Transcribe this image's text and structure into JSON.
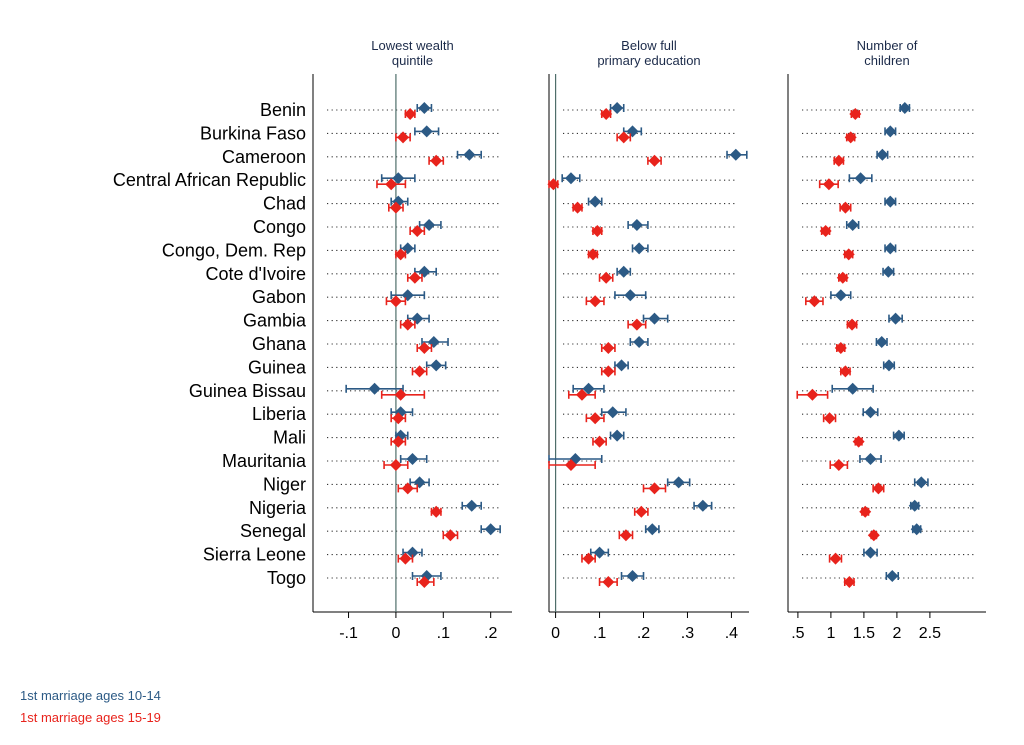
{
  "chart_data": {
    "type": "scatter",
    "countries": [
      "Benin",
      "Burkina Faso",
      "Cameroon",
      "Central African Republic",
      "Chad",
      "Congo",
      "Congo, Dem. Rep",
      "Cote d'Ivoire",
      "Gabon",
      "Gambia",
      "Ghana",
      "Guinea",
      "Guinea Bissau",
      "Liberia",
      "Mali",
      "Mauritania",
      "Niger",
      "Nigeria",
      "Senegal",
      "Sierra Leone",
      "Togo"
    ],
    "panels": [
      {
        "title_lines": [
          "Lowest wealth",
          "quintile"
        ],
        "xlim": [
          -0.175,
          0.245
        ],
        "refline": 0,
        "ticks": [
          -0.1,
          0,
          0.1,
          0.2
        ],
        "tick_labels": [
          "-.1",
          "0",
          ".1",
          ".2"
        ],
        "series": [
          {
            "name": "1st marriage ages 10-14",
            "values": [
              0.06,
              0.065,
              0.155,
              0.005,
              0.005,
              0.07,
              0.025,
              0.06,
              0.025,
              0.045,
              0.08,
              0.085,
              -0.045,
              0.01,
              0.01,
              0.035,
              0.05,
              0.16,
              0.2,
              0.035,
              0.065
            ],
            "lo": [
              0.045,
              0.04,
              0.13,
              -0.03,
              -0.01,
              0.05,
              0.01,
              0.04,
              -0.01,
              0.025,
              0.055,
              0.065,
              -0.105,
              -0.01,
              0,
              0.01,
              0.03,
              0.14,
              0.18,
              0.015,
              0.035
            ],
            "hi": [
              0.075,
              0.09,
              0.18,
              0.04,
              0.025,
              0.095,
              0.04,
              0.085,
              0.06,
              0.07,
              0.11,
              0.105,
              0.015,
              0.035,
              0.025,
              0.065,
              0.07,
              0.18,
              0.22,
              0.055,
              0.095
            ]
          },
          {
            "name": "1st marriage ages 15-19",
            "values": [
              0.03,
              0.015,
              0.085,
              -0.01,
              0,
              0.045,
              0.01,
              0.04,
              0,
              0.025,
              0.06,
              0.05,
              0.01,
              0.005,
              0.005,
              0,
              0.025,
              0.085,
              0.115,
              0.02,
              0.06
            ],
            "lo": [
              0.02,
              0,
              0.07,
              -0.04,
              -0.015,
              0.03,
              0,
              0.025,
              -0.02,
              0.01,
              0.045,
              0.035,
              -0.03,
              -0.01,
              -0.01,
              -0.025,
              0.005,
              0.075,
              0.1,
              0.005,
              0.045
            ],
            "hi": [
              0.04,
              0.03,
              0.1,
              0.02,
              0.015,
              0.06,
              0.02,
              0.055,
              0.02,
              0.04,
              0.075,
              0.065,
              0.06,
              0.02,
              0.02,
              0.025,
              0.045,
              0.095,
              0.13,
              0.035,
              0.08
            ]
          }
        ]
      },
      {
        "title_lines": [
          "Below full",
          "primary education"
        ],
        "xlim": [
          -0.015,
          0.44
        ],
        "refline": 0,
        "ticks": [
          0,
          0.1,
          0.2,
          0.3,
          0.4
        ],
        "tick_labels": [
          "0",
          ".1",
          ".2",
          ".3",
          ".4"
        ],
        "series": [
          {
            "name": "1st marriage ages 10-14",
            "values": [
              0.14,
              0.175,
              0.41,
              0.035,
              0.09,
              0.185,
              0.19,
              0.155,
              0.17,
              0.225,
              0.19,
              0.15,
              0.075,
              0.13,
              0.14,
              0.045,
              0.28,
              0.335,
              0.22,
              0.1,
              0.175
            ],
            "lo": [
              0.125,
              0.155,
              0.39,
              0.015,
              0.075,
              0.165,
              0.175,
              0.14,
              0.135,
              0.2,
              0.17,
              0.135,
              0.04,
              0.105,
              0.125,
              -0.015,
              0.255,
              0.315,
              0.205,
              0.08,
              0.15
            ],
            "hi": [
              0.155,
              0.195,
              0.435,
              0.055,
              0.105,
              0.21,
              0.21,
              0.17,
              0.205,
              0.255,
              0.21,
              0.165,
              0.11,
              0.16,
              0.155,
              0.105,
              0.305,
              0.355,
              0.235,
              0.12,
              0.2
            ]
          },
          {
            "name": "1st marriage ages 15-19",
            "values": [
              0.115,
              0.155,
              0.225,
              -0.005,
              0.05,
              0.095,
              0.085,
              0.115,
              0.09,
              0.185,
              0.12,
              0.12,
              0.06,
              0.09,
              0.1,
              0.035,
              0.225,
              0.195,
              0.16,
              0.075,
              0.12
            ],
            "lo": [
              0.105,
              0.14,
              0.21,
              -0.015,
              0.04,
              0.085,
              0.075,
              0.1,
              0.07,
              0.165,
              0.105,
              0.105,
              0.03,
              0.07,
              0.085,
              -0.015,
              0.2,
              0.18,
              0.145,
              0.06,
              0.1
            ],
            "hi": [
              0.125,
              0.17,
              0.24,
              0.005,
              0.06,
              0.105,
              0.095,
              0.13,
              0.11,
              0.205,
              0.135,
              0.135,
              0.09,
              0.11,
              0.115,
              0.09,
              0.25,
              0.21,
              0.175,
              0.09,
              0.14
            ]
          }
        ]
      },
      {
        "title_lines": [
          "Number of",
          "children"
        ],
        "xlim": [
          0.35,
          3.35
        ],
        "refline": null,
        "ticks": [
          0.5,
          1,
          1.5,
          2,
          2.5
        ],
        "tick_labels": [
          ".5",
          "1",
          "1.5",
          "2",
          "2.5"
        ],
        "series": [
          {
            "name": "1st marriage ages 10-14",
            "values": [
              2.12,
              1.9,
              1.78,
              1.45,
              1.9,
              1.33,
              1.9,
              1.87,
              1.15,
              1.98,
              1.77,
              1.88,
              1.33,
              1.6,
              2.03,
              1.6,
              2.37,
              2.27,
              2.3,
              1.6,
              1.93
            ],
            "lo": [
              2.05,
              1.82,
              1.7,
              1.28,
              1.82,
              1.24,
              1.82,
              1.79,
              1.0,
              1.88,
              1.69,
              1.8,
              1.02,
              1.49,
              1.95,
              1.44,
              2.27,
              2.21,
              2.24,
              1.5,
              1.84
            ],
            "hi": [
              2.19,
              1.98,
              1.86,
              1.62,
              1.98,
              1.42,
              1.98,
              1.95,
              1.3,
              2.08,
              1.85,
              1.96,
              1.64,
              1.71,
              2.11,
              1.76,
              2.47,
              2.33,
              2.36,
              1.7,
              2.02
            ]
          },
          {
            "name": "1st marriage ages 15-19",
            "values": [
              1.37,
              1.3,
              1.12,
              0.97,
              1.22,
              0.92,
              1.27,
              1.18,
              0.75,
              1.32,
              1.15,
              1.22,
              0.72,
              0.98,
              1.42,
              1.12,
              1.72,
              1.52,
              1.65,
              1.07,
              1.28
            ],
            "lo": [
              1.31,
              1.24,
              1.05,
              0.83,
              1.14,
              0.86,
              1.21,
              1.12,
              0.62,
              1.25,
              1.09,
              1.15,
              0.49,
              0.89,
              1.37,
              0.99,
              1.64,
              1.47,
              1.61,
              0.98,
              1.21
            ],
            "hi": [
              1.43,
              1.36,
              1.19,
              1.11,
              1.3,
              0.98,
              1.33,
              1.24,
              0.88,
              1.39,
              1.21,
              1.29,
              0.95,
              1.07,
              1.47,
              1.25,
              1.8,
              1.57,
              1.69,
              1.16,
              1.35
            ]
          }
        ]
      }
    ],
    "legend": [
      "1st marriage ages 10-14",
      "1st marriage ages 15-19"
    ]
  },
  "colors": {
    "series1": "#2c5a85",
    "series2": "#e8231c",
    "title": "#1c2b4a",
    "axis": "#000000",
    "refline": "#4f6e6a",
    "dots": "#333333"
  }
}
